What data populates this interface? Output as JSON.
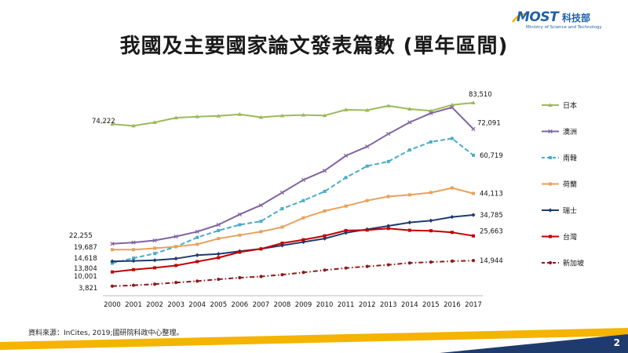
{
  "title": "我國及主要國家論文發表篇數 (單年區間)",
  "logo": {
    "mark": "MOST",
    "cn": "科技部",
    "en": "Ministry of Science and Technology"
  },
  "source": "資料來源：InCites, 2019;國研院科政中心整理。",
  "page_number": "2",
  "colors": {
    "bar_gold": "#f4b400",
    "bar_blue": "#1f3b6e"
  },
  "chart_data": {
    "type": "line",
    "title": "",
    "xlabel": "",
    "ylabel": "",
    "x": [
      2000,
      2001,
      2002,
      2003,
      2004,
      2005,
      2006,
      2007,
      2008,
      2009,
      2010,
      2011,
      2012,
      2013,
      2014,
      2015,
      2016,
      2017
    ],
    "ylim": [
      0,
      90000
    ],
    "grid": false,
    "legend_position": "right",
    "series": [
      {
        "name": "日本",
        "color": "#9bbb59",
        "dash": false,
        "marker": "triangle",
        "values": [
          74222,
          73500,
          75000,
          77000,
          77500,
          77800,
          78500,
          77200,
          77900,
          78200,
          78000,
          80500,
          80300,
          82200,
          80800,
          80000,
          82600,
          83510
        ],
        "start_label": "74,222",
        "end_label": "83,510"
      },
      {
        "name": "澳洲",
        "color": "#8064a2",
        "dash": false,
        "marker": "x",
        "values": [
          22255,
          22800,
          23700,
          25400,
          27500,
          30500,
          35000,
          39000,
          44500,
          50000,
          54000,
          60500,
          64500,
          70000,
          75000,
          79000,
          81500,
          72091
        ],
        "start_label": "22,255",
        "end_label": "72,091"
      },
      {
        "name": "南韓",
        "color": "#4bacc6",
        "dash": true,
        "marker": "square",
        "values": [
          13804,
          16000,
          18000,
          21000,
          25000,
          28000,
          30500,
          32000,
          37500,
          41000,
          45000,
          51000,
          56000,
          58000,
          63000,
          66500,
          68000,
          60719
        ],
        "start_label": "13,804",
        "end_label": "60,719"
      },
      {
        "name": "荷蘭",
        "color": "#e9a15a",
        "dash": false,
        "marker": "square",
        "values": [
          19687,
          19700,
          20300,
          21000,
          22000,
          24500,
          26000,
          27500,
          29500,
          33500,
          36500,
          38600,
          41000,
          42800,
          43500,
          44500,
          46500,
          44113
        ],
        "start_label": "19,687",
        "end_label": "44,113"
      },
      {
        "name": "瑞士",
        "color": "#1f3b6e",
        "dash": false,
        "marker": "diamond",
        "values": [
          14618,
          14800,
          15100,
          15800,
          17300,
          17800,
          19000,
          20000,
          21500,
          23000,
          24500,
          27000,
          28500,
          30000,
          31500,
          32300,
          33900,
          34785
        ],
        "start_label": "14,618",
        "end_label": "34,785"
      },
      {
        "name": "台灣",
        "color": "#c00000",
        "dash": false,
        "marker": "square",
        "values": [
          10001,
          11000,
          11800,
          12800,
          14500,
          16200,
          18600,
          20000,
          22500,
          24000,
          25700,
          28000,
          28200,
          28900,
          28100,
          27900,
          27200,
          25663
        ],
        "start_label": "10,001",
        "end_label": "25,663"
      },
      {
        "name": "新加坡",
        "color": "#8b1a1a",
        "dash": true,
        "marker": "circle",
        "values": [
          3821,
          4200,
          4700,
          5400,
          6000,
          6800,
          7500,
          8000,
          8800,
          9800,
          10800,
          11700,
          12400,
          13100,
          13900,
          14300,
          14700,
          14944
        ],
        "start_label": "3,821",
        "end_label": "14,944"
      }
    ]
  }
}
